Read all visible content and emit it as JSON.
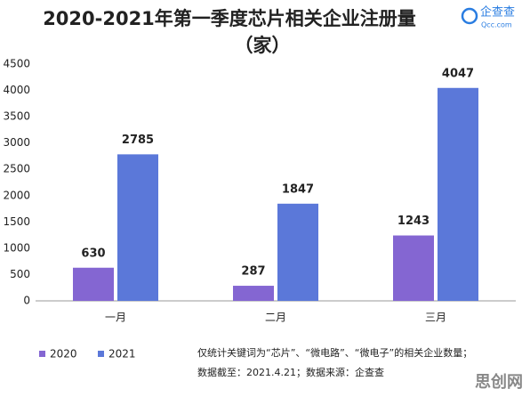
{
  "chart_data": {
    "type": "bar",
    "title": "2020-2021年第一季度芯片相关企业注册量",
    "subtitle": "（家）",
    "categories": [
      "一月",
      "二月",
      "三月"
    ],
    "series": [
      {
        "name": "2020",
        "color": "#8466d2",
        "values": [
          630,
          287,
          1243
        ]
      },
      {
        "name": "2021",
        "color": "#5b78d9",
        "values": [
          2785,
          1847,
          4047
        ]
      }
    ],
    "ylim": [
      0,
      4500
    ],
    "yticks": [
      0,
      500,
      1000,
      1500,
      2000,
      2500,
      3000,
      3500,
      4000,
      4500
    ],
    "grid": false,
    "legend": "bottom-left"
  },
  "logo": {
    "name": "企查查",
    "url": "Qcc.com"
  },
  "notes": [
    "仅统计关键词为“芯片”、“微电路”、“微电子”的相关企业数量；",
    "数据截至：2021.4.21；数据来源：企查查"
  ],
  "watermark": "思创网"
}
